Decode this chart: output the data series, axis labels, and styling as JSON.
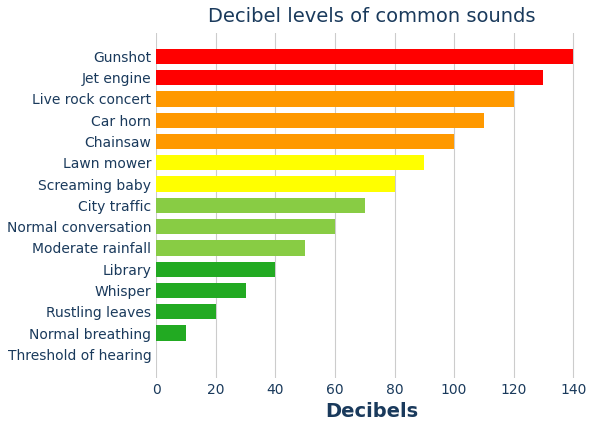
{
  "title": "Decibel levels of common sounds",
  "xlabel": "Decibels",
  "categories": [
    "Threshold of hearing",
    "Normal breathing",
    "Rustling leaves",
    "Whisper",
    "Library",
    "Moderate rainfall",
    "Normal conversation",
    "City traffic",
    "Screaming baby",
    "Lawn mower",
    "Chainsaw",
    "Car horn",
    "Live rock concert",
    "Jet engine",
    "Gunshot"
  ],
  "values": [
    0,
    10,
    20,
    30,
    40,
    50,
    60,
    70,
    80,
    90,
    100,
    110,
    120,
    130,
    140
  ],
  "colors": [
    "#22aa22",
    "#22aa22",
    "#22aa22",
    "#22aa22",
    "#22aa22",
    "#88cc44",
    "#88cc44",
    "#88cc44",
    "#ffff00",
    "#ffff00",
    "#ff9900",
    "#ff9900",
    "#ff9900",
    "#ff0000",
    "#ff0000"
  ],
  "xlim": [
    0,
    145
  ],
  "xticks": [
    0,
    20,
    40,
    60,
    80,
    100,
    120,
    140
  ],
  "title_fontsize": 14,
  "xlabel_fontsize": 14,
  "tick_fontsize": 10,
  "label_fontsize": 10,
  "title_color": "#1a3a5c",
  "label_color": "#1a3a5c",
  "tick_color": "#1a3a5c",
  "xlabel_color": "#1a3a5c",
  "background_color": "#ffffff",
  "grid_color": "#cccccc",
  "bar_height": 0.72
}
